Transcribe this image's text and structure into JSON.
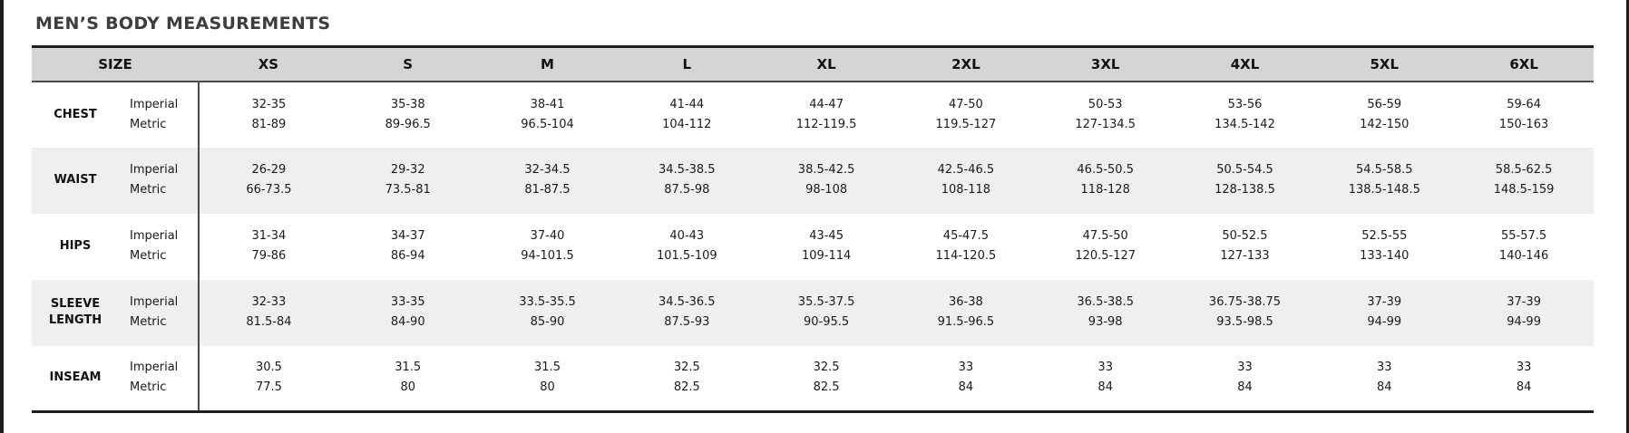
{
  "page": {
    "title": "MEN’S BODY MEASUREMENTS"
  },
  "table": {
    "header": {
      "size_label": "SIZE",
      "columns": [
        "XS",
        "S",
        "M",
        "L",
        "XL",
        "2XL",
        "3XL",
        "4XL",
        "5XL",
        "6XL"
      ]
    },
    "unit_labels": [
      "Imperial",
      "Metric"
    ],
    "rows": [
      {
        "name": "CHEST",
        "imperial": [
          "32-35",
          "35-38",
          "38-41",
          "41-44",
          "44-47",
          "47-50",
          "50-53",
          "53-56",
          "56-59",
          "59-64"
        ],
        "metric": [
          "81-89",
          "89-96.5",
          "96.5-104",
          "104-112",
          "112-119.5",
          "119.5-127",
          "127-134.5",
          "134.5-142",
          "142-150",
          "150-163"
        ]
      },
      {
        "name": "WAIST",
        "imperial": [
          "26-29",
          "29-32",
          "32-34.5",
          "34.5-38.5",
          "38.5-42.5",
          "42.5-46.5",
          "46.5-50.5",
          "50.5-54.5",
          "54.5-58.5",
          "58.5-62.5"
        ],
        "metric": [
          "66-73.5",
          "73.5-81",
          "81-87.5",
          "87.5-98",
          "98-108",
          "108-118",
          "118-128",
          "128-138.5",
          "138.5-148.5",
          "148.5-159"
        ]
      },
      {
        "name": "HIPS",
        "imperial": [
          "31-34",
          "34-37",
          "37-40",
          "40-43",
          "43-45",
          "45-47.5",
          "47.5-50",
          "50-52.5",
          "52.5-55",
          "55-57.5"
        ],
        "metric": [
          "79-86",
          "86-94",
          "94-101.5",
          "101.5-109",
          "109-114",
          "114-120.5",
          "120.5-127",
          "127-133",
          "133-140",
          "140-146"
        ]
      },
      {
        "name": "SLEEVE LENGTH",
        "imperial": [
          "32-33",
          "33-35",
          "33.5-35.5",
          "34.5-36.5",
          "35.5-37.5",
          "36-38",
          "36.5-38.5",
          "36.75-38.75",
          "37-39",
          "37-39"
        ],
        "metric": [
          "81.5-84",
          "84-90",
          "85-90",
          "87.5-93",
          "90-95.5",
          "91.5-96.5",
          "93-98",
          "93.5-98.5",
          "94-99",
          "94-99"
        ]
      },
      {
        "name": "INSEAM",
        "imperial": [
          "30.5",
          "31.5",
          "31.5",
          "32.5",
          "32.5",
          "33",
          "33",
          "33",
          "33",
          "33"
        ],
        "metric": [
          "77.5",
          "80",
          "80",
          "82.5",
          "82.5",
          "84",
          "84",
          "84",
          "84",
          "84"
        ]
      }
    ]
  },
  "colors": {
    "header_bg": "#d5d5d5",
    "row_alt_bg": "#efefef",
    "border_dark": "#1f1f1f",
    "border_mid": "#4a4a4a",
    "title_text": "#3d3d3d",
    "body_text": "#1a1a1a"
  }
}
